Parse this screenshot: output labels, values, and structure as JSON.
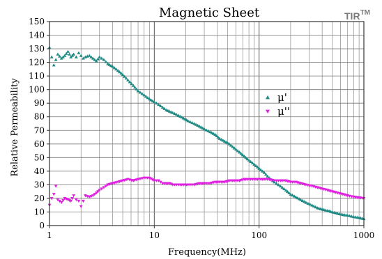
{
  "brand": {
    "text": "TIR",
    "superscript": "TM",
    "color": "#7a7a7a"
  },
  "chart_data": {
    "type": "scatter",
    "title": "Magnetic Sheet",
    "xlabel": "Frequency(MHz)",
    "ylabel": "Relative Permeability",
    "x_scale": "log",
    "xlim": [
      1,
      1000
    ],
    "ylim": [
      0,
      150
    ],
    "x_ticks": [
      "1",
      "10",
      "100",
      "1000"
    ],
    "y_ticks": [
      "0",
      "10",
      "20",
      "30",
      "40",
      "50",
      "60",
      "70",
      "80",
      "90",
      "100",
      "110",
      "120",
      "130",
      "140",
      "150"
    ],
    "grid": true,
    "legend_position": "right",
    "series": [
      {
        "name": "μ'",
        "marker": "triangle-up",
        "color": "#1f8a84",
        "x": [
          1.0,
          1.05,
          1.1,
          1.15,
          1.2,
          1.3,
          1.4,
          1.5,
          1.6,
          1.7,
          1.8,
          1.9,
          2.0,
          2.1,
          2.2,
          2.4,
          2.6,
          2.8,
          3.0,
          3.3,
          3.6,
          4.0,
          4.5,
          5.0,
          5.6,
          6.3,
          7.0,
          8.0,
          9.0,
          10,
          11,
          12,
          13,
          14,
          15,
          17,
          19,
          21,
          24,
          27,
          30,
          34,
          38,
          42,
          47,
          52,
          58,
          65,
          72,
          80,
          90,
          100,
          112,
          125,
          140,
          160,
          180,
          200,
          225,
          250,
          280,
          320,
          360,
          400,
          450,
          500,
          560,
          630,
          700,
          800,
          900,
          1000
        ],
        "y": [
          131,
          124,
          118,
          122,
          126,
          123,
          125,
          128,
          124,
          126,
          124,
          127,
          125,
          123,
          124,
          125,
          123,
          121,
          124,
          122,
          119,
          117,
          114,
          111,
          107,
          103,
          99,
          96,
          93,
          91,
          89,
          87,
          85,
          84,
          83,
          81,
          79,
          77,
          75,
          73,
          71,
          69,
          67,
          64,
          62,
          60,
          57,
          54,
          51,
          48,
          45,
          42,
          39,
          35,
          32,
          29,
          26,
          23,
          21,
          19,
          17,
          15,
          13,
          12,
          11,
          10,
          9,
          8,
          7.5,
          6.5,
          5.8,
          5
        ]
      },
      {
        "name": "μ''",
        "marker": "triangle-down",
        "color": "#e020e0",
        "x": [
          1.0,
          1.05,
          1.1,
          1.15,
          1.2,
          1.3,
          1.4,
          1.5,
          1.6,
          1.7,
          1.8,
          1.9,
          2.0,
          2.1,
          2.2,
          2.4,
          2.6,
          2.8,
          3.0,
          3.3,
          3.6,
          4.0,
          4.5,
          5.0,
          5.6,
          6.3,
          7.0,
          8.0,
          9.0,
          10,
          11,
          12,
          13,
          14,
          15,
          17,
          19,
          21,
          24,
          27,
          30,
          34,
          38,
          42,
          47,
          52,
          58,
          65,
          72,
          80,
          90,
          100,
          112,
          125,
          140,
          160,
          180,
          200,
          225,
          250,
          280,
          320,
          360,
          400,
          450,
          500,
          560,
          630,
          700,
          800,
          900,
          1000
        ],
        "y": [
          15,
          20,
          23,
          29,
          19,
          17,
          20,
          19,
          18,
          22,
          19,
          18,
          14,
          18,
          22,
          21,
          22,
          24,
          26,
          28,
          30,
          31,
          32,
          33,
          34,
          33,
          34,
          35,
          35,
          33,
          33,
          31,
          31,
          31,
          30,
          30,
          30,
          30,
          30,
          31,
          31,
          31,
          32,
          32,
          32,
          33,
          33,
          33,
          34,
          34,
          34,
          34,
          34,
          34,
          33,
          33,
          33,
          32,
          32,
          31,
          30,
          29,
          28,
          27,
          26,
          25,
          24,
          23,
          22,
          21,
          20.5,
          20
        ]
      }
    ]
  }
}
